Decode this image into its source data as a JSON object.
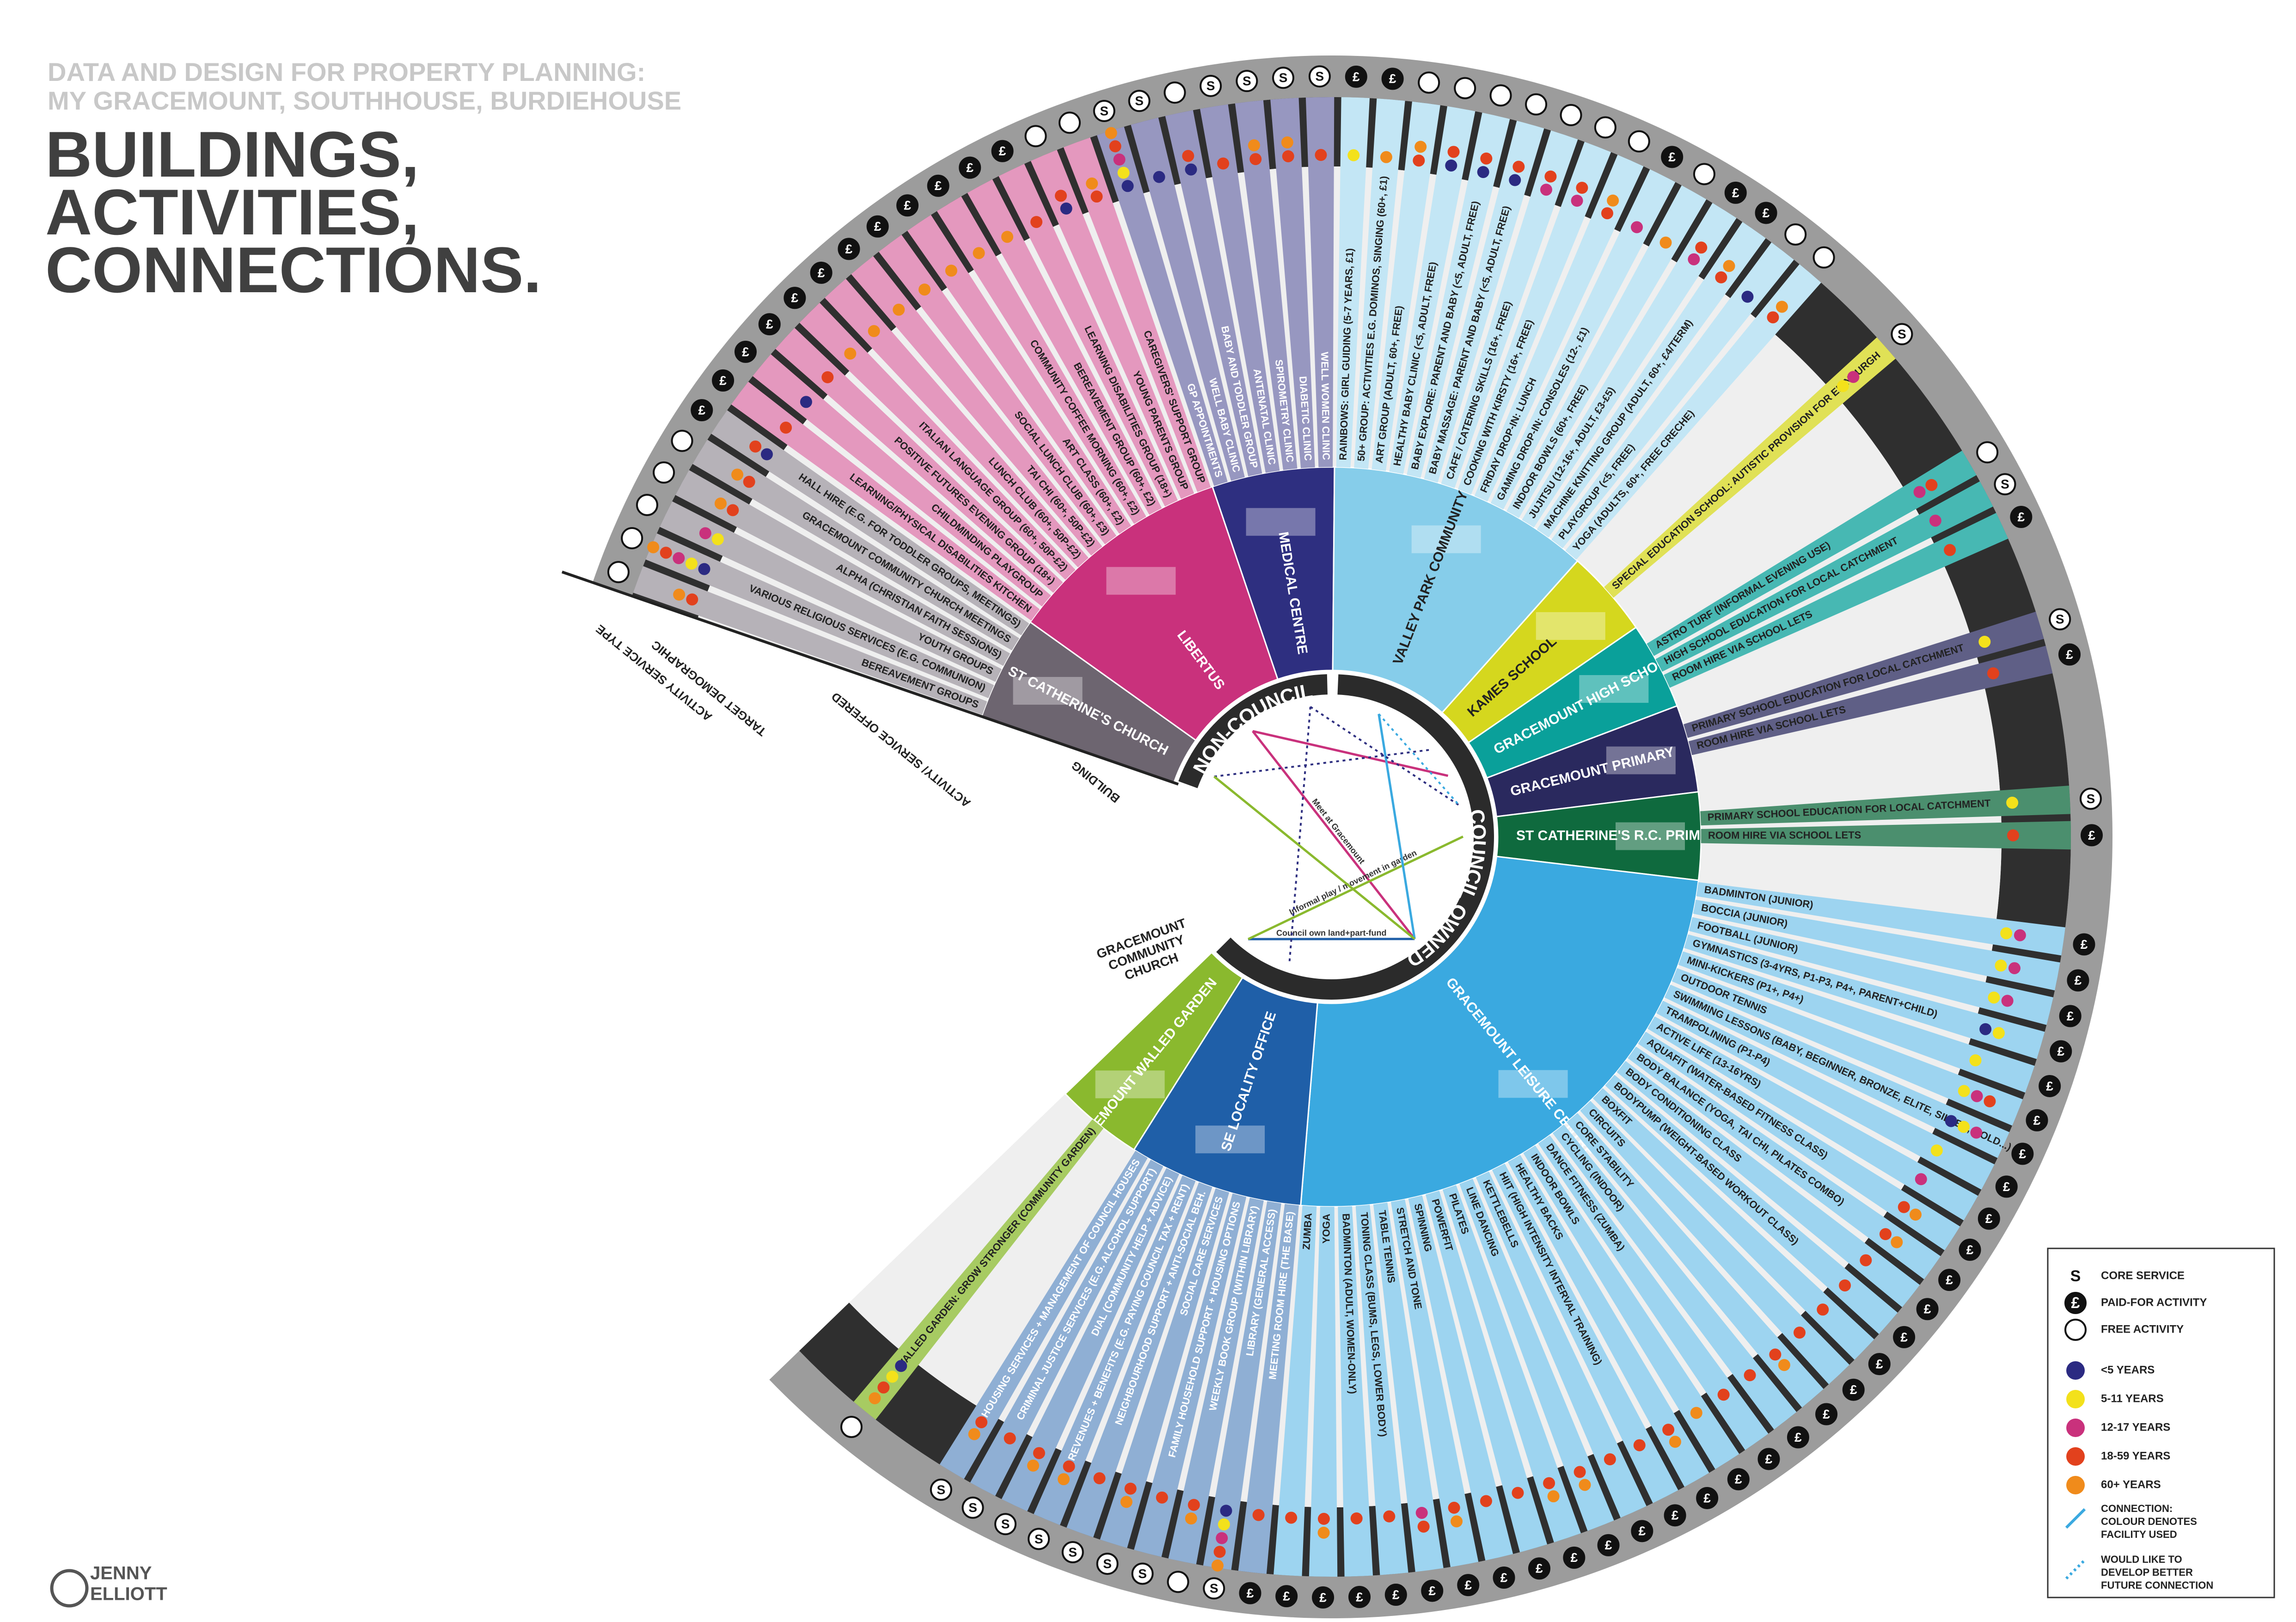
{
  "header": {
    "subtitle": [
      "DATA AND DESIGN FOR PROPERTY PLANNING:",
      "MY GRACEMOUNT, SOUTHHOUSE, BURDIEHOUSE"
    ],
    "title": [
      "BUILDINGS,",
      "ACTIVITIES,",
      "CONNECTIONS."
    ]
  },
  "author": [
    "JENNY",
    "ELLIOTT"
  ],
  "ownership": [
    "NON-COUNCIL",
    "COUNCIL OWNED"
  ],
  "ring_labels": [
    "BUILDING",
    "ACTIVITY/ SERVICE OFFERED",
    "TARGET DEMOGRAPHIC",
    "ACTIVITY SERVICE TYPE"
  ],
  "other_building": [
    "GRACEMOUNT",
    "COMMUNITY",
    "CHURCH"
  ],
  "legend": {
    "service": [
      {
        "symbol": "S",
        "label": "CORE SERVICE"
      },
      {
        "symbol": "£",
        "label": "PAID-FOR ACTIVITY"
      },
      {
        "label": "FREE ACTIVITY"
      }
    ],
    "ages": [
      {
        "label": "<5 YEARS",
        "color": "#2b2a82"
      },
      {
        "label": "5-11 YEARS",
        "color": "#f3e11b"
      },
      {
        "label": "12-17 YEARS",
        "color": "#c9317c"
      },
      {
        "label": "18-59 YEARS",
        "color": "#e2411d"
      },
      {
        "label": "60+ YEARS",
        "color": "#f08b1b"
      }
    ],
    "connection": [
      [
        "CONNECTION:",
        "COLOUR DENOTES",
        "FACILITY USED"
      ],
      [
        "WOULD LIKE TO",
        "DEVELOP BETTER",
        "FUTURE CONNECTION"
      ]
    ]
  },
  "buildings": [
    {
      "name": "ST CATHERINE'S CHURCH",
      "owner": 0,
      "color": "#6d6570",
      "activities": [
        {
          "label": "BEREAVEMENT GROUPS",
          "service": 2,
          "ages": [
            3,
            4
          ]
        },
        {
          "label": "VARIOUS RELIGIOUS SERVICES (E.G. COMMUNION)",
          "service": 2,
          "ages": [
            0,
            1,
            2,
            3,
            4
          ]
        },
        {
          "label": "YOUTH GROUPS",
          "service": 2,
          "ages": [
            1,
            2
          ]
        },
        {
          "label": "ALPHA (CHRISTIAN FAITH SESSIONS)",
          "service": 2,
          "ages": [
            3,
            4
          ]
        },
        {
          "label": "GRACEMOUNT COMMUNITY CHURCH MEETINGS",
          "service": 2,
          "ages": [
            3,
            4
          ]
        },
        {
          "label": "HALL HIRE (E.G. FOR TODDLER GROUPS, MEETINGS)",
          "service": 1,
          "ages": [
            0,
            3
          ]
        }
      ]
    },
    {
      "name": "LIBERTUS",
      "owner": 0,
      "color": "#c9317c",
      "activities": [
        {
          "label": "LEARNING/PHYSICAL DISABILITIES KITCHEN",
          "service": 1,
          "ages": [
            3
          ]
        },
        {
          "label": "CHILDMINDING PLAYGROUP",
          "service": 1,
          "ages": [
            0
          ]
        },
        {
          "label": "POSITIVE FUTURES EVENING GROUP (18+)",
          "service": 1,
          "ages": [
            3
          ]
        },
        {
          "label": "ITALIAN LANGUAGE GROUP (60+, 50P-£2)",
          "service": 1,
          "ages": [
            4
          ]
        },
        {
          "label": "LUNCH CLUB (60+, 50P-£2)",
          "service": 1,
          "ages": [
            4
          ]
        },
        {
          "label": "TAI CHI (60+, 50P-£2)",
          "service": 1,
          "ages": [
            4
          ]
        },
        {
          "label": "SOCIAL LUNCH CLUB (60+, £3)",
          "service": 1,
          "ages": [
            4
          ]
        },
        {
          "label": "ART CLASS (60+, £2)",
          "service": 1,
          "ages": [
            4
          ]
        },
        {
          "label": "COMMUNITY COFFEE MORNING (60+, £2)",
          "service": 1,
          "ages": [
            4
          ]
        },
        {
          "label": "BEREAVEMENT GROUP (60+, £2)",
          "service": 1,
          "ages": [
            4
          ]
        },
        {
          "label": "LEARNING DISABILITIES GROUP (18+)",
          "service": 1,
          "ages": [
            3
          ]
        },
        {
          "label": "YOUNG PARENTS GROUP",
          "service": 2,
          "ages": [
            0,
            3
          ]
        },
        {
          "label": "CAREGIVERS' SUPPORT GROUP",
          "service": 2,
          "ages": [
            3,
            4
          ]
        }
      ]
    },
    {
      "name": "MEDICAL CENTRE",
      "owner": 0,
      "color": "#2e2f80",
      "activities": [
        {
          "label": "GP APPOINTMENTS",
          "service": 0,
          "ages": [
            0,
            1,
            2,
            3,
            4
          ]
        },
        {
          "label": "WELL BABY CLINIC",
          "service": 0,
          "ages": [
            0
          ]
        },
        {
          "label": "BABY AND TODDLER GROUP",
          "service": 2,
          "ages": [
            0,
            3
          ]
        },
        {
          "label": "ANTENATAL CLINIC",
          "service": 0,
          "ages": [
            3
          ]
        },
        {
          "label": "SPIROMETRY CLINIC",
          "service": 0,
          "ages": [
            3,
            4
          ]
        },
        {
          "label": "DIABETIC CLINIC",
          "service": 0,
          "ages": [
            3,
            4
          ]
        },
        {
          "label": "WELL WOMEN CLINIC",
          "service": 0,
          "ages": [
            3
          ]
        }
      ]
    },
    {
      "name": "VALLEY PARK COMMUNITY CENTRE",
      "owner": 1,
      "color": "#86cdea",
      "activities": [
        {
          "label": "RAINBOWS: GIRL GUIDING (5-7 YEARS, £1)",
          "service": 1,
          "ages": [
            1
          ]
        },
        {
          "label": "50+ GROUP: ACTIVITIES E.G. DOMINOS, SINGING (60+, £1)",
          "service": 1,
          "ages": [
            4
          ]
        },
        {
          "label": "ART GROUP (ADULT, 60+, FREE)",
          "service": 2,
          "ages": [
            3,
            4
          ]
        },
        {
          "label": "HEALTHY BABY CLINIC (<5, ADULT, FREE)",
          "service": 2,
          "ages": [
            0,
            3
          ]
        },
        {
          "label": "BABY EXPLORE: PARENT AND BABY (<5, ADULT, FREE)",
          "service": 2,
          "ages": [
            0,
            3
          ]
        },
        {
          "label": "BABY MASSAGE: PARENT AND BABY (<5, ADULT, FREE)",
          "service": 2,
          "ages": [
            0,
            3
          ]
        },
        {
          "label": "CAFE / CATERING SKILLS (16+, FREE)",
          "service": 2,
          "ages": [
            2,
            3
          ]
        },
        {
          "label": "COOKING WITH KIRSTY (16+, FREE)",
          "service": 2,
          "ages": [
            2,
            3
          ]
        },
        {
          "label": "FRIDAY DROP-IN: LUNCH",
          "service": 2,
          "ages": [
            3,
            4
          ]
        },
        {
          "label": "GAMING DROP-IN: CONSOLES (12-, £1)",
          "service": 1,
          "ages": [
            2
          ]
        },
        {
          "label": "INDOOR BOWLS (60+, FREE)",
          "service": 2,
          "ages": [
            4
          ]
        },
        {
          "label": "JUJITSU (12-16+, ADULT, £3-£5)",
          "service": 1,
          "ages": [
            2,
            3
          ]
        },
        {
          "label": "MACHINE KNITTING GROUP (ADULT, 60+, £4/TERM)",
          "service": 1,
          "ages": [
            3,
            4
          ]
        },
        {
          "label": "PLAYGROUP (<5, FREE)",
          "service": 2,
          "ages": [
            0
          ]
        },
        {
          "label": "YOGA (ADULTS, 60+, FREE CRECHE)",
          "service": 2,
          "ages": [
            3,
            4
          ]
        }
      ]
    },
    {
      "name": "KAMES SCHOOL",
      "owner": 1,
      "color": "#d5d71e",
      "activities": [
        {
          "label": "SPECIAL EDUCATION SCHOOL: AUTISTIC PROVISION FOR EDINBURGH",
          "service": 0,
          "ages": [
            1,
            2
          ]
        }
      ]
    },
    {
      "name": "GRACEMOUNT HIGH SCHOOL",
      "owner": 1,
      "color": "#0aa09a",
      "activities": [
        {
          "label": "ASTRO TURF (INFORMAL EVENING USE)",
          "service": 2,
          "ages": [
            2,
            3
          ]
        },
        {
          "label": "HIGH SCHOOL EDUCATION FOR LOCAL CATCHMENT",
          "service": 0,
          "ages": [
            2
          ]
        },
        {
          "label": "ROOM HIRE VIA SCHOOL LETS",
          "service": 1,
          "ages": [
            3
          ]
        }
      ]
    },
    {
      "name": "GRACEMOUNT PRIMARY",
      "owner": 1,
      "color": "#2a295e",
      "activities": [
        {
          "label": "PRIMARY SCHOOL EDUCATION FOR LOCAL CATCHMENT",
          "service": 0,
          "ages": [
            1
          ]
        },
        {
          "label": "ROOM HIRE VIA SCHOOL LETS",
          "service": 1,
          "ages": [
            3
          ]
        }
      ]
    },
    {
      "name": "ST CATHERINE'S R.C. PRIMARY",
      "owner": 1,
      "color": "#0f6a3e",
      "activities": [
        {
          "label": "PRIMARY SCHOOL EDUCATION FOR LOCAL CATCHMENT",
          "service": 0,
          "ages": [
            1
          ]
        },
        {
          "label": "ROOM HIRE VIA SCHOOL LETS",
          "service": 1,
          "ages": [
            3
          ]
        }
      ]
    },
    {
      "name": "GRACEMOUNT LEISURE CENTRE",
      "owner": 1,
      "color": "#3aa9e0",
      "activities": [
        {
          "label": "BADMINTON (JUNIOR)",
          "service": 1,
          "ages": [
            1,
            2
          ]
        },
        {
          "label": "BOCCIA (JUNIOR)",
          "service": 1,
          "ages": [
            1,
            2
          ]
        },
        {
          "label": "FOOTBALL (JUNIOR)",
          "service": 1,
          "ages": [
            1,
            2
          ]
        },
        {
          "label": "GYMNASTICS (3-4YRS, P1-P3, P4+, PARENT+CHILD)",
          "service": 1,
          "ages": [
            0,
            1
          ]
        },
        {
          "label": "MINI-KICKERS (P1+, P4+)",
          "service": 1,
          "ages": [
            1
          ]
        },
        {
          "label": "OUTDOOR TENNIS",
          "service": 1,
          "ages": [
            1,
            2,
            3
          ]
        },
        {
          "label": "SWIMMING LESSONS (BABY, BEGINNER, BRONZE, ELITE, SILVER, GOLD...)",
          "service": 1,
          "ages": [
            0,
            1,
            2
          ]
        },
        {
          "label": "TRAMPOLINING (P1-P4)",
          "service": 1,
          "ages": [
            1
          ]
        },
        {
          "label": "ACTIVE LIFE (13-16YRS)",
          "service": 1,
          "ages": [
            2
          ]
        },
        {
          "label": "AQUAFIT (WATER-BASED FITNESS CLASS)",
          "service": 1,
          "ages": [
            3,
            4
          ]
        },
        {
          "label": "BODY BALANCE (YOGA, TAI CHI, PILATES COMBO)",
          "service": 1,
          "ages": [
            3,
            4
          ]
        },
        {
          "label": "BODY CONDITIONING CLASS",
          "service": 1,
          "ages": [
            3
          ]
        },
        {
          "label": "BODYPUMP (WEIGHT-BASED WORKOUT CLASS)",
          "service": 1,
          "ages": [
            3
          ]
        },
        {
          "label": "BOXFIT",
          "service": 1,
          "ages": [
            3
          ]
        },
        {
          "label": "CIRCUITS",
          "service": 1,
          "ages": [
            3
          ]
        },
        {
          "label": "CORE STABILITY",
          "service": 1,
          "ages": [
            3,
            4
          ]
        },
        {
          "label": "CYCLING (INDOOR)",
          "service": 1,
          "ages": [
            3
          ]
        },
        {
          "label": "DANCE FITNESS (ZUMBA)",
          "service": 1,
          "ages": [
            3
          ]
        },
        {
          "label": "INDOOR BOWLS",
          "service": 1,
          "ages": [
            4
          ]
        },
        {
          "label": "HEALTHY BACKS",
          "service": 1,
          "ages": [
            3,
            4
          ]
        },
        {
          "label": "HIIT (HIGH INTENSITY INTERVAL TRAINING)",
          "service": 1,
          "ages": [
            3
          ]
        },
        {
          "label": "KETTLEBELLS",
          "service": 1,
          "ages": [
            3
          ]
        },
        {
          "label": "LINE DANCING",
          "service": 1,
          "ages": [
            3,
            4
          ]
        },
        {
          "label": "PILATES",
          "service": 1,
          "ages": [
            3,
            4
          ]
        },
        {
          "label": "POWERFIT",
          "service": 1,
          "ages": [
            3
          ]
        },
        {
          "label": "SPINNING",
          "service": 1,
          "ages": [
            3
          ]
        },
        {
          "label": "STRETCH AND TONE",
          "service": 1,
          "ages": [
            3,
            4
          ]
        },
        {
          "label": "TABLE TENNIS",
          "service": 1,
          "ages": [
            2,
            3
          ]
        },
        {
          "label": "TONING CLASS (BUMS, LEGS, LOWER BODY)",
          "service": 1,
          "ages": [
            3
          ]
        },
        {
          "label": "BADMINTON (ADULT, WOMEN-ONLY)",
          "service": 1,
          "ages": [
            3
          ]
        },
        {
          "label": "YOGA",
          "service": 1,
          "ages": [
            3,
            4
          ]
        },
        {
          "label": "ZUMBA",
          "service": 1,
          "ages": [
            3
          ]
        }
      ]
    },
    {
      "name": "SE LOCALITY OFFICE",
      "owner": 1,
      "color": "#1f5fa8",
      "activities": [
        {
          "label": "MEETING ROOM HIRE (THE BASE)",
          "service": 1,
          "ages": [
            3
          ]
        },
        {
          "label": "LIBRARY (GENERAL ACCESS)",
          "service": 0,
          "ages": [
            0,
            1,
            2,
            3,
            4
          ]
        },
        {
          "label": "WEEKLY BOOK GROUP (WITHIN LIBRARY)",
          "service": 2,
          "ages": [
            3,
            4
          ]
        },
        {
          "label": "FAMILY HOUSEHOLD SUPPORT + HOUSING OPTIONS",
          "service": 0,
          "ages": [
            3
          ]
        },
        {
          "label": "SOCIAL CARE SERVICES",
          "service": 0,
          "ages": [
            3,
            4
          ]
        },
        {
          "label": "NEIGHBOURHOOD SUPPORT + ANTI-SOCIAL BEH.",
          "service": 0,
          "ages": [
            3
          ]
        },
        {
          "label": "REVENUES + BENEFITS (E.G. PAYING COUNCIL TAX + RENT)",
          "service": 0,
          "ages": [
            3,
            4
          ]
        },
        {
          "label": "DIAL (COMMUNITY HELP + ADVICE)",
          "service": 0,
          "ages": [
            3,
            4
          ]
        },
        {
          "label": "CRIMINAL JUSTICE SERVICES (E.G. ALCOHOL SUPPORT)",
          "service": 0,
          "ages": [
            3
          ]
        },
        {
          "label": "HOUSING SERVICES + MANAGEMENT OF COUNCIL HOUSES",
          "service": 0,
          "ages": [
            3,
            4
          ]
        }
      ]
    },
    {
      "name": "GRACEMOUNT WALLED GARDEN",
      "owner": 1,
      "color": "#8ab92e",
      "activities": [
        {
          "label": "WALLED GARDEN: GROW STRONGER (COMMUNITY GARDEN)",
          "service": 2,
          "ages": [
            0,
            1,
            3,
            4
          ]
        }
      ]
    }
  ],
  "connections": [
    {
      "from": 1,
      "to": 8,
      "label": "Meet at Gracemount",
      "planned": false,
      "color": "#c9317c"
    },
    {
      "from": 1,
      "to": 5,
      "planned": false,
      "color": "#c9317c"
    },
    {
      "from": 10,
      "to": 8,
      "label": "Council own land+part-fund",
      "planned": false,
      "color": "#1f5fa8"
    },
    {
      "from": 10,
      "to": 7,
      "label": "Informal play / movement in garden",
      "planned": false,
      "color": "#8ab92e"
    },
    {
      "from": 3,
      "to": 8,
      "planned": false,
      "color": "#3aa9e0"
    },
    {
      "from": 2,
      "to": 6,
      "planned": true,
      "color": "#2e2f80"
    },
    {
      "from": 0,
      "to": 4,
      "planned": true,
      "color": "#2e2f80"
    },
    {
      "from": 2,
      "to": 9,
      "planned": true,
      "color": "#2e2f80"
    },
    {
      "from": 3,
      "to": 6,
      "planned": true,
      "color": "#3aa9e0"
    },
    {
      "from": 0,
      "to": 8,
      "planned": false,
      "color": "#8ab92e"
    }
  ]
}
